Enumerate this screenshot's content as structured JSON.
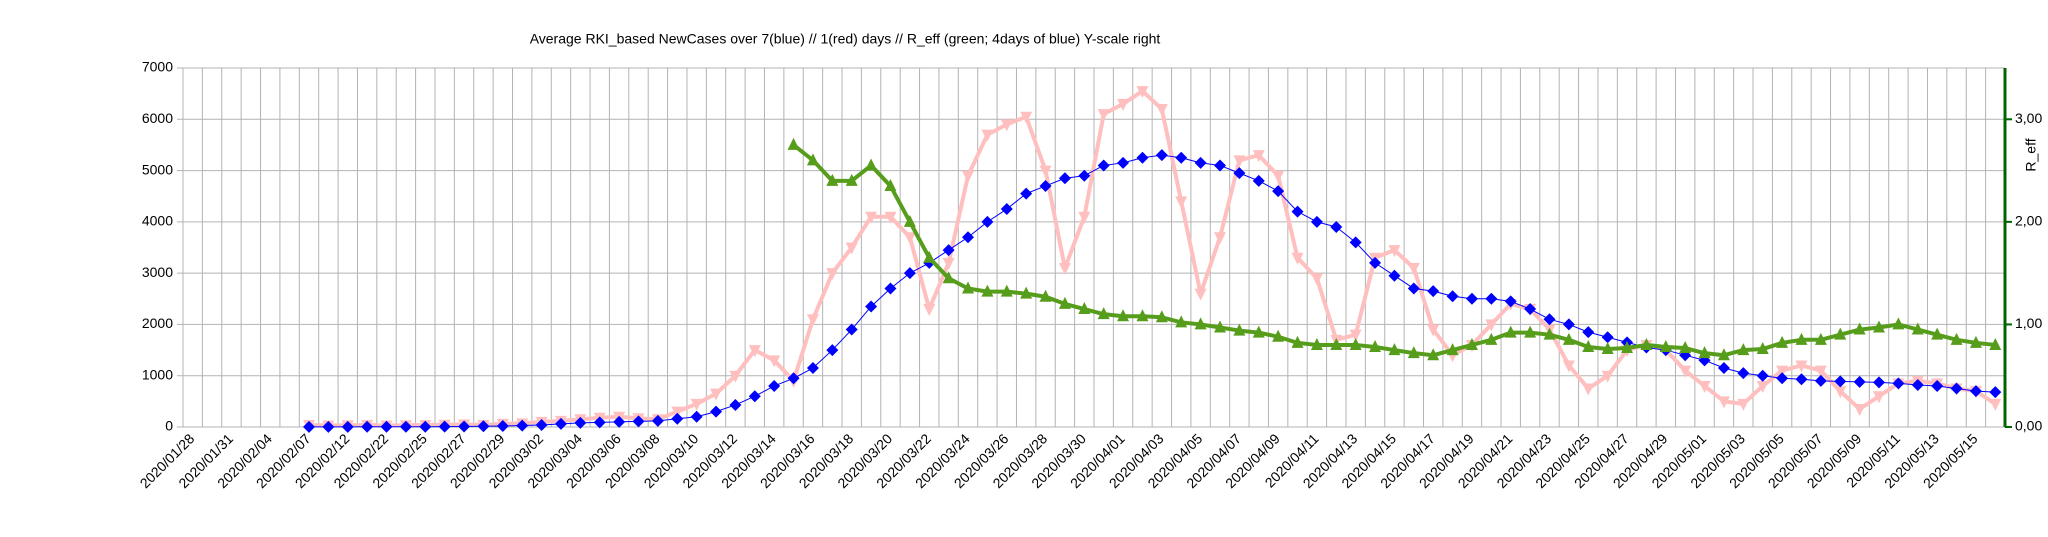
{
  "chart_data": {
    "type": "line",
    "title": "Average RKI_based NewCases over 7(blue) // 1(red) days //  R_eff (green; 4days of blue) Y-scale right",
    "y2label": "R_eff",
    "categories": [
      "2020/01/28",
      null,
      "2020/01/31",
      null,
      "2020/02/04",
      null,
      "2020/02/07",
      null,
      "2020/02/12",
      null,
      "2020/02/22",
      null,
      "2020/02/25",
      null,
      "2020/02/27",
      null,
      "2020/02/29",
      null,
      "2020/03/02",
      null,
      "2020/03/04",
      null,
      "2020/03/06",
      null,
      "2020/03/08",
      null,
      "2020/03/10",
      null,
      "2020/03/12",
      null,
      "2020/03/14",
      null,
      "2020/03/16",
      null,
      "2020/03/18",
      null,
      "2020/03/20",
      null,
      "2020/03/22",
      null,
      "2020/03/24",
      null,
      "2020/03/26",
      null,
      "2020/03/28",
      null,
      "2020/03/30",
      null,
      "2020/04/01",
      null,
      "2020/04/03",
      null,
      "2020/04/05",
      null,
      "2020/04/07",
      null,
      "2020/04/09",
      null,
      "2020/04/11",
      null,
      "2020/04/13",
      null,
      "2020/04/15",
      null,
      "2020/04/17",
      null,
      "2020/04/19",
      null,
      "2020/04/21",
      null,
      "2020/04/23",
      null,
      "2020/04/25",
      null,
      "2020/04/27",
      null,
      "2020/04/29",
      null,
      "2020/05/01",
      null,
      "2020/05/03",
      null,
      "2020/05/05",
      null,
      "2020/05/07",
      null,
      "2020/05/09",
      null,
      "2020/05/11",
      null,
      "2020/05/13",
      null,
      "2020/05/15",
      null
    ],
    "series": [
      {
        "color": "#ffbfbf",
        "marker": "triangle-down",
        "width": 4,
        "values": [
          null,
          null,
          null,
          null,
          null,
          null,
          40,
          30,
          35,
          40,
          30,
          35,
          40,
          45,
          50,
          40,
          60,
          70,
          100,
          120,
          150,
          180,
          200,
          170,
          150,
          300,
          450,
          650,
          1000,
          1500,
          1300,
          900,
          2100,
          3000,
          3500,
          4100,
          4100,
          3700,
          2300,
          3200,
          4900,
          5700,
          5900,
          6050,
          5000,
          3100,
          4100,
          6100,
          6300,
          6550,
          6200,
          4400,
          2600,
          3700,
          5200,
          5300,
          4900,
          3300,
          2900,
          1700,
          1800,
          3300,
          3450,
          3100,
          1900,
          1400,
          1600,
          2000,
          2400,
          2300,
          1900,
          1200,
          750,
          1000,
          1500,
          1600,
          1500,
          1100,
          800,
          500,
          450,
          800,
          1100,
          1200,
          1100,
          700,
          350,
          600,
          850,
          900,
          850,
          750,
          700,
          450
        ]
      },
      {
        "color": "#0000ff",
        "marker": "diamond",
        "width": 1,
        "values": [
          null,
          null,
          null,
          null,
          null,
          null,
          2,
          3,
          3,
          4,
          5,
          5,
          6,
          8,
          10,
          14,
          20,
          28,
          40,
          60,
          80,
          90,
          100,
          110,
          120,
          160,
          200,
          300,
          430,
          600,
          800,
          950,
          1150,
          1500,
          1900,
          2350,
          2700,
          3000,
          3200,
          3450,
          3700,
          4000,
          4250,
          4550,
          4700,
          4850,
          4900,
          5100,
          5150,
          5250,
          5300,
          5250,
          5150,
          5100,
          4950,
          4800,
          4600,
          4200,
          4000,
          3900,
          3600,
          3200,
          2950,
          2700,
          2650,
          2550,
          2500,
          2500,
          2450,
          2300,
          2100,
          2000,
          1850,
          1750,
          1650,
          1550,
          1500,
          1400,
          1300,
          1150,
          1050,
          1000,
          950,
          930,
          900,
          890,
          880,
          870,
          850,
          820,
          800,
          750,
          700,
          680
        ]
      },
      {
        "color": "#579d1c",
        "marker": "triangle-up",
        "width": 4,
        "axis": "y2",
        "values": [
          null,
          null,
          null,
          null,
          null,
          null,
          null,
          null,
          null,
          null,
          null,
          null,
          null,
          null,
          null,
          null,
          null,
          null,
          null,
          null,
          null,
          null,
          null,
          null,
          null,
          null,
          null,
          null,
          null,
          null,
          null,
          2.75,
          2.6,
          2.4,
          2.4,
          2.55,
          2.35,
          2.0,
          1.65,
          1.45,
          1.35,
          1.32,
          1.32,
          1.3,
          1.27,
          1.2,
          1.15,
          1.1,
          1.08,
          1.08,
          1.07,
          1.02,
          1.0,
          0.97,
          0.94,
          0.92,
          0.88,
          0.82,
          0.8,
          0.8,
          0.8,
          0.78,
          0.75,
          0.72,
          0.7,
          0.75,
          0.8,
          0.85,
          0.92,
          0.92,
          0.9,
          0.85,
          0.78,
          0.76,
          0.77,
          0.8,
          0.78,
          0.77,
          0.72,
          0.7,
          0.75,
          0.76,
          0.82,
          0.85,
          0.85,
          0.9,
          0.95,
          0.97,
          1.0,
          0.95,
          0.9,
          0.85,
          0.82,
          0.8
        ]
      }
    ],
    "ylim": [
      0,
      7000
    ],
    "yticks": [
      0,
      1000,
      2000,
      3000,
      4000,
      5000,
      6000,
      7000
    ],
    "y2lim": [
      0,
      3.5
    ],
    "y2ticks": [
      {
        "value": 0,
        "label": "0,00"
      },
      {
        "value": 1,
        "label": "1,00"
      },
      {
        "value": 2,
        "label": "2,00"
      },
      {
        "value": 3,
        "label": "3,00"
      }
    ],
    "y2color": "#006400",
    "grid": true
  }
}
